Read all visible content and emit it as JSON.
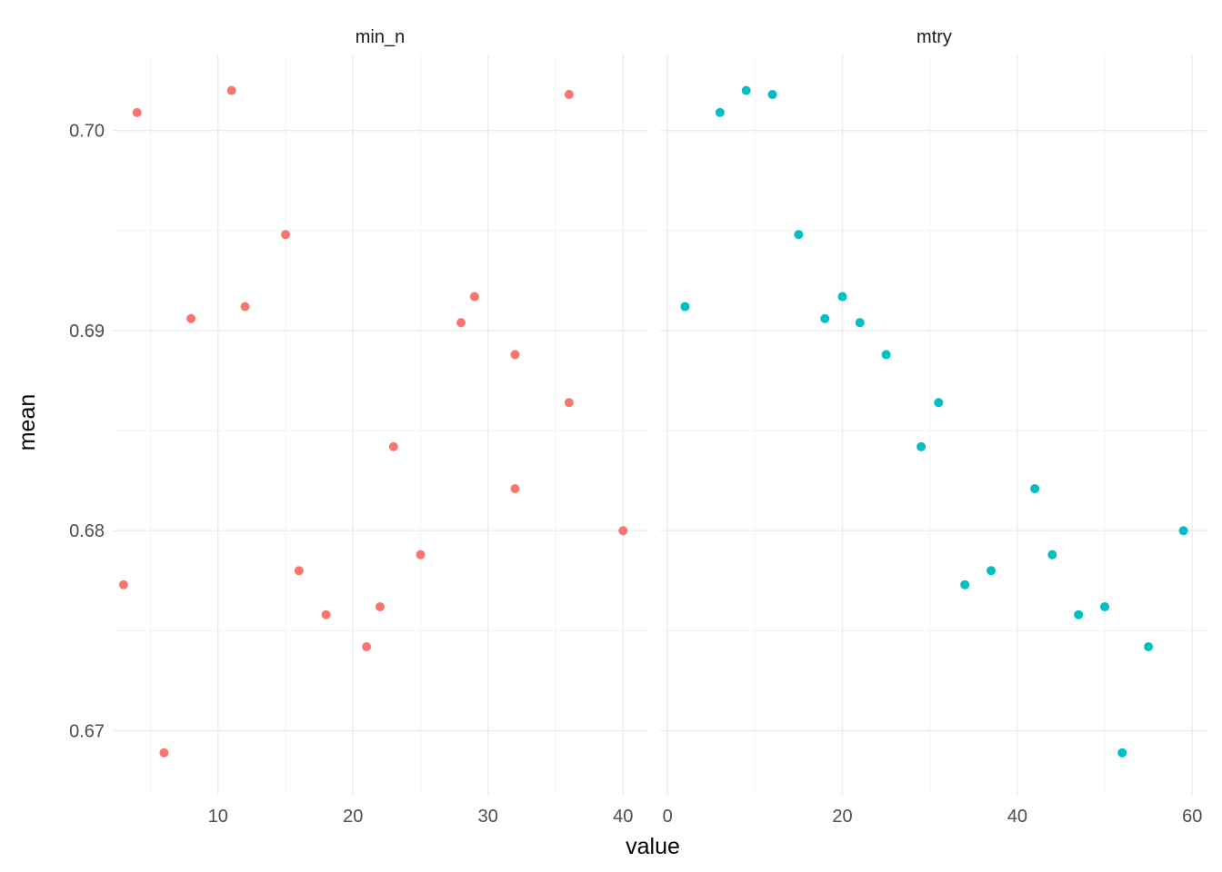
{
  "chart_data": {
    "type": "scatter",
    "ylabel": "mean",
    "xlabel": "value",
    "ylim": [
      0.6668,
      0.7038
    ],
    "y_ticks": [
      0.67,
      0.68,
      0.69,
      0.7
    ],
    "y_tick_labels": [
      "0.67",
      "0.68",
      "0.69",
      "0.70"
    ],
    "grid": true,
    "legend": "none",
    "panels": [
      {
        "strip": "min_n",
        "color": "#F8766D",
        "xlim": [
          2.2,
          41.8
        ],
        "x_ticks": [
          10,
          20,
          30,
          40
        ],
        "x_tick_labels": [
          "10",
          "20",
          "30",
          "40"
        ],
        "points": [
          {
            "x": 3,
            "y": 0.6773
          },
          {
            "x": 4,
            "y": 0.7009
          },
          {
            "x": 6,
            "y": 0.6689
          },
          {
            "x": 8,
            "y": 0.6906
          },
          {
            "x": 11,
            "y": 0.702
          },
          {
            "x": 12,
            "y": 0.6912
          },
          {
            "x": 15,
            "y": 0.6948
          },
          {
            "x": 16,
            "y": 0.678
          },
          {
            "x": 18,
            "y": 0.6758
          },
          {
            "x": 21,
            "y": 0.6742
          },
          {
            "x": 22,
            "y": 0.6762
          },
          {
            "x": 23,
            "y": 0.6842
          },
          {
            "x": 25,
            "y": 0.6788
          },
          {
            "x": 28,
            "y": 0.6904
          },
          {
            "x": 29,
            "y": 0.6917
          },
          {
            "x": 32,
            "y": 0.6888
          },
          {
            "x": 32,
            "y": 0.6821
          },
          {
            "x": 36,
            "y": 0.7018
          },
          {
            "x": 36,
            "y": 0.6864
          },
          {
            "x": 40,
            "y": 0.68
          }
        ]
      },
      {
        "strip": "mtry",
        "color": "#00BFC4",
        "xlim": [
          -0.85,
          61.85
        ],
        "x_ticks": [
          0,
          20,
          40,
          60
        ],
        "x_tick_labels": [
          "0",
          "20",
          "40",
          "60"
        ],
        "points": [
          {
            "x": 2,
            "y": 0.6912
          },
          {
            "x": 6,
            "y": 0.7009
          },
          {
            "x": 9,
            "y": 0.702
          },
          {
            "x": 12,
            "y": 0.7018
          },
          {
            "x": 15,
            "y": 0.6948
          },
          {
            "x": 18,
            "y": 0.6906
          },
          {
            "x": 20,
            "y": 0.6917
          },
          {
            "x": 22,
            "y": 0.6904
          },
          {
            "x": 25,
            "y": 0.6888
          },
          {
            "x": 29,
            "y": 0.6842
          },
          {
            "x": 31,
            "y": 0.6864
          },
          {
            "x": 34,
            "y": 0.6773
          },
          {
            "x": 37,
            "y": 0.678
          },
          {
            "x": 42,
            "y": 0.6821
          },
          {
            "x": 44,
            "y": 0.6788
          },
          {
            "x": 47,
            "y": 0.6758
          },
          {
            "x": 50,
            "y": 0.6762
          },
          {
            "x": 52,
            "y": 0.6689
          },
          {
            "x": 55,
            "y": 0.6742
          },
          {
            "x": 59,
            "y": 0.68
          }
        ]
      }
    ]
  }
}
